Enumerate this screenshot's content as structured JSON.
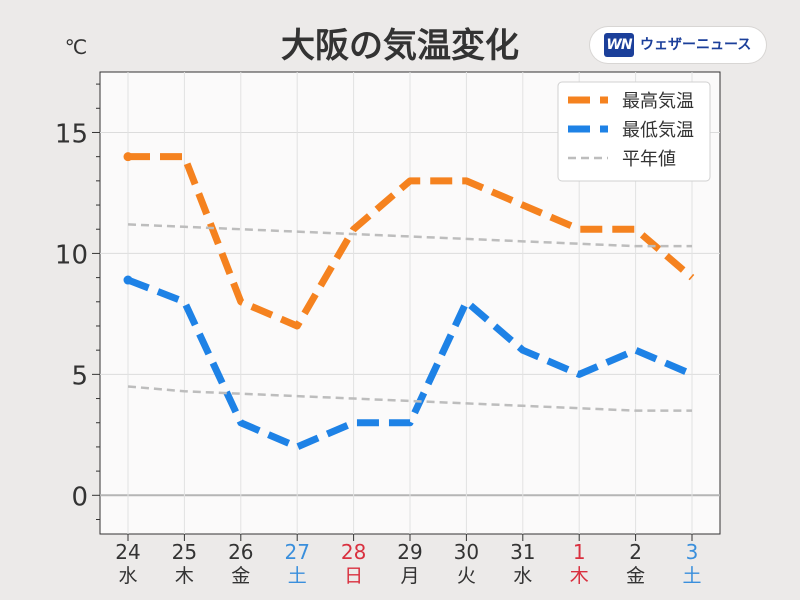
{
  "brand": {
    "name": "ウェザーニュース",
    "mark": "WN"
  },
  "chart_data": {
    "type": "line",
    "title": "大阪の気温変化",
    "ylabel": "℃",
    "ylim": [
      -1.6,
      17.5
    ],
    "yticks": [
      0,
      5,
      10,
      15
    ],
    "grid": true,
    "legend_position": "top-right",
    "categories": [
      {
        "day": "24",
        "weekday": "水",
        "color": "#333333"
      },
      {
        "day": "25",
        "weekday": "木",
        "color": "#333333"
      },
      {
        "day": "26",
        "weekday": "金",
        "color": "#333333"
      },
      {
        "day": "27",
        "weekday": "土",
        "color": "#3a8fdc"
      },
      {
        "day": "28",
        "weekday": "日",
        "color": "#d9303f"
      },
      {
        "day": "29",
        "weekday": "月",
        "color": "#333333"
      },
      {
        "day": "30",
        "weekday": "火",
        "color": "#333333"
      },
      {
        "day": "31",
        "weekday": "水",
        "color": "#333333"
      },
      {
        "day": "1",
        "weekday": "木",
        "color": "#d9303f"
      },
      {
        "day": "2",
        "weekday": "金",
        "color": "#333333"
      },
      {
        "day": "3",
        "weekday": "土",
        "color": "#3a8fdc"
      }
    ],
    "series": [
      {
        "name": "最高気温",
        "color": "#f5821f",
        "style": "dashed-thick",
        "values": [
          14,
          14,
          8,
          7,
          11,
          13,
          13,
          12,
          11,
          11,
          9
        ]
      },
      {
        "name": "最低気温",
        "color": "#1e82e6",
        "style": "dashed-thick",
        "values": [
          8.9,
          8,
          3,
          2,
          3,
          3,
          8,
          6,
          5,
          6,
          5
        ]
      },
      {
        "name": "平年値",
        "color": "#bdbdbd",
        "style": "dashed-thin",
        "values": [
          11.2,
          11.1,
          11.0,
          10.9,
          10.8,
          10.7,
          10.6,
          10.5,
          10.4,
          10.3,
          10.3
        ]
      },
      {
        "name": "平年値",
        "color": "#bdbdbd",
        "style": "dashed-thin",
        "legend": false,
        "values": [
          4.5,
          4.3,
          4.2,
          4.1,
          4.0,
          3.9,
          3.8,
          3.7,
          3.6,
          3.5,
          3.5
        ]
      }
    ]
  }
}
